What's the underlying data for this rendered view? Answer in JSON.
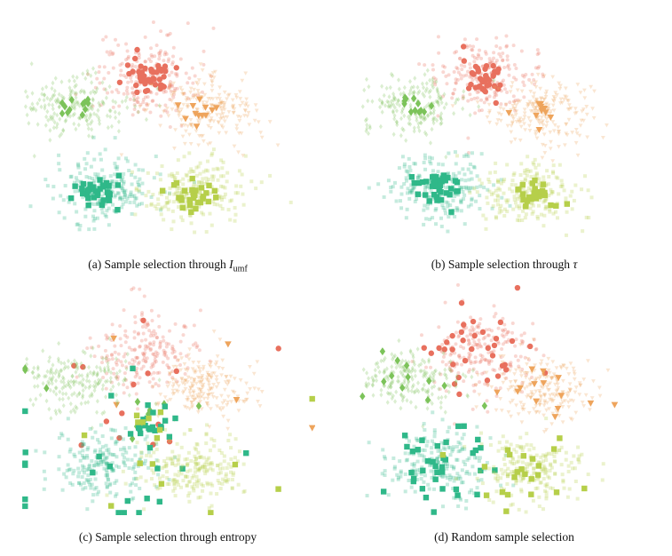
{
  "figure": {
    "panels": [
      {
        "id": "a",
        "caption_lead": "(a) Sample selection through ",
        "caption_math": "I",
        "caption_sub": "umf",
        "caption_tail": "",
        "strategy": "umf"
      },
      {
        "id": "b",
        "caption_lead": "(b) Sample selection through ",
        "caption_math": "τ",
        "caption_sub": "",
        "caption_tail": "",
        "strategy": "tau"
      },
      {
        "id": "c",
        "caption_lead": "(c) Sample selection through entropy",
        "caption_math": "",
        "caption_sub": "",
        "caption_tail": "",
        "strategy": "entropy"
      },
      {
        "id": "d",
        "caption_lead": "(d) Random sample selection",
        "caption_math": "",
        "caption_sub": "",
        "caption_tail": "",
        "strategy": "random"
      }
    ]
  },
  "chart_data": [
    {
      "type": "scatter",
      "title": "(a) Sample selection through I_umf",
      "xlabel": "",
      "ylabel": "",
      "axes": "hidden",
      "series": [
        {
          "cluster": "red",
          "color": "#e8705e",
          "marker": "circle",
          "center": [
            0.42,
            0.7
          ],
          "spread": [
            0.075,
            0.075
          ],
          "selected": 46
        },
        {
          "cluster": "orange",
          "color": "#eea45c",
          "marker": "triangle-down",
          "center": [
            0.62,
            0.55
          ],
          "spread": [
            0.075,
            0.06
          ],
          "selected": 12
        },
        {
          "cluster": "green",
          "color": "#7cc35a",
          "marker": "diamond",
          "center": [
            0.18,
            0.58
          ],
          "spread": [
            0.08,
            0.055
          ],
          "selected": 12
        },
        {
          "cluster": "teal",
          "color": "#2fb889",
          "marker": "square",
          "center": [
            0.28,
            0.22
          ],
          "spread": [
            0.08,
            0.065
          ],
          "selected": 36
        },
        {
          "cluster": "yellow-green",
          "color": "#b6cf4a",
          "marker": "square",
          "center": [
            0.58,
            0.2
          ],
          "spread": [
            0.075,
            0.065
          ],
          "selected": 30
        }
      ]
    },
    {
      "type": "scatter",
      "title": "(b) Sample selection through τ",
      "xlabel": "",
      "ylabel": "",
      "axes": "hidden",
      "series": [
        {
          "cluster": "red",
          "color": "#e8705e",
          "marker": "circle",
          "center": [
            0.42,
            0.7
          ],
          "spread": [
            0.075,
            0.075
          ],
          "selected": 40
        },
        {
          "cluster": "orange",
          "color": "#eea45c",
          "marker": "triangle-down",
          "center": [
            0.62,
            0.55
          ],
          "spread": [
            0.075,
            0.06
          ],
          "selected": 10
        },
        {
          "cluster": "green",
          "color": "#7cc35a",
          "marker": "diamond",
          "center": [
            0.18,
            0.58
          ],
          "spread": [
            0.08,
            0.055
          ],
          "selected": 12
        },
        {
          "cluster": "teal",
          "color": "#2fb889",
          "marker": "square",
          "center": [
            0.28,
            0.22
          ],
          "spread": [
            0.08,
            0.065
          ],
          "selected": 40
        },
        {
          "cluster": "yellow-green",
          "color": "#b6cf4a",
          "marker": "square",
          "center": [
            0.58,
            0.2
          ],
          "spread": [
            0.075,
            0.065
          ],
          "selected": 26
        }
      ]
    },
    {
      "type": "scatter",
      "title": "(c) Sample selection through entropy",
      "xlabel": "",
      "ylabel": "",
      "axes": "hidden",
      "series": [
        {
          "cluster": "red",
          "color": "#e8705e",
          "marker": "circle",
          "center": [
            0.42,
            0.7
          ],
          "spread": [
            0.075,
            0.075
          ],
          "selected": 14
        },
        {
          "cluster": "orange",
          "color": "#eea45c",
          "marker": "triangle-down",
          "center": [
            0.62,
            0.55
          ],
          "spread": [
            0.075,
            0.06
          ],
          "selected": 6
        },
        {
          "cluster": "green",
          "color": "#7cc35a",
          "marker": "diamond",
          "center": [
            0.18,
            0.58
          ],
          "spread": [
            0.08,
            0.055
          ],
          "selected": 10
        },
        {
          "cluster": "teal",
          "color": "#2fb889",
          "marker": "square",
          "center": [
            0.28,
            0.22
          ],
          "spread": [
            0.08,
            0.065
          ],
          "selected": 40
        },
        {
          "cluster": "yellow-green",
          "color": "#b6cf4a",
          "marker": "square",
          "center": [
            0.58,
            0.2
          ],
          "spread": [
            0.075,
            0.065
          ],
          "selected": 16
        }
      ]
    },
    {
      "type": "scatter",
      "title": "(d) Random sample selection",
      "xlabel": "",
      "ylabel": "",
      "axes": "hidden",
      "series": [
        {
          "cluster": "red",
          "color": "#e8705e",
          "marker": "circle",
          "center": [
            0.42,
            0.7
          ],
          "spread": [
            0.075,
            0.075
          ],
          "selected": 34
        },
        {
          "cluster": "orange",
          "color": "#eea45c",
          "marker": "triangle-down",
          "center": [
            0.62,
            0.55
          ],
          "spread": [
            0.075,
            0.06
          ],
          "selected": 14
        },
        {
          "cluster": "green",
          "color": "#7cc35a",
          "marker": "diamond",
          "center": [
            0.18,
            0.58
          ],
          "spread": [
            0.08,
            0.055
          ],
          "selected": 12
        },
        {
          "cluster": "teal",
          "color": "#2fb889",
          "marker": "square",
          "center": [
            0.28,
            0.22
          ],
          "spread": [
            0.08,
            0.065
          ],
          "selected": 36
        },
        {
          "cluster": "yellow-green",
          "color": "#b6cf4a",
          "marker": "square",
          "center": [
            0.58,
            0.2
          ],
          "spread": [
            0.075,
            0.065
          ],
          "selected": 22
        }
      ]
    }
  ]
}
